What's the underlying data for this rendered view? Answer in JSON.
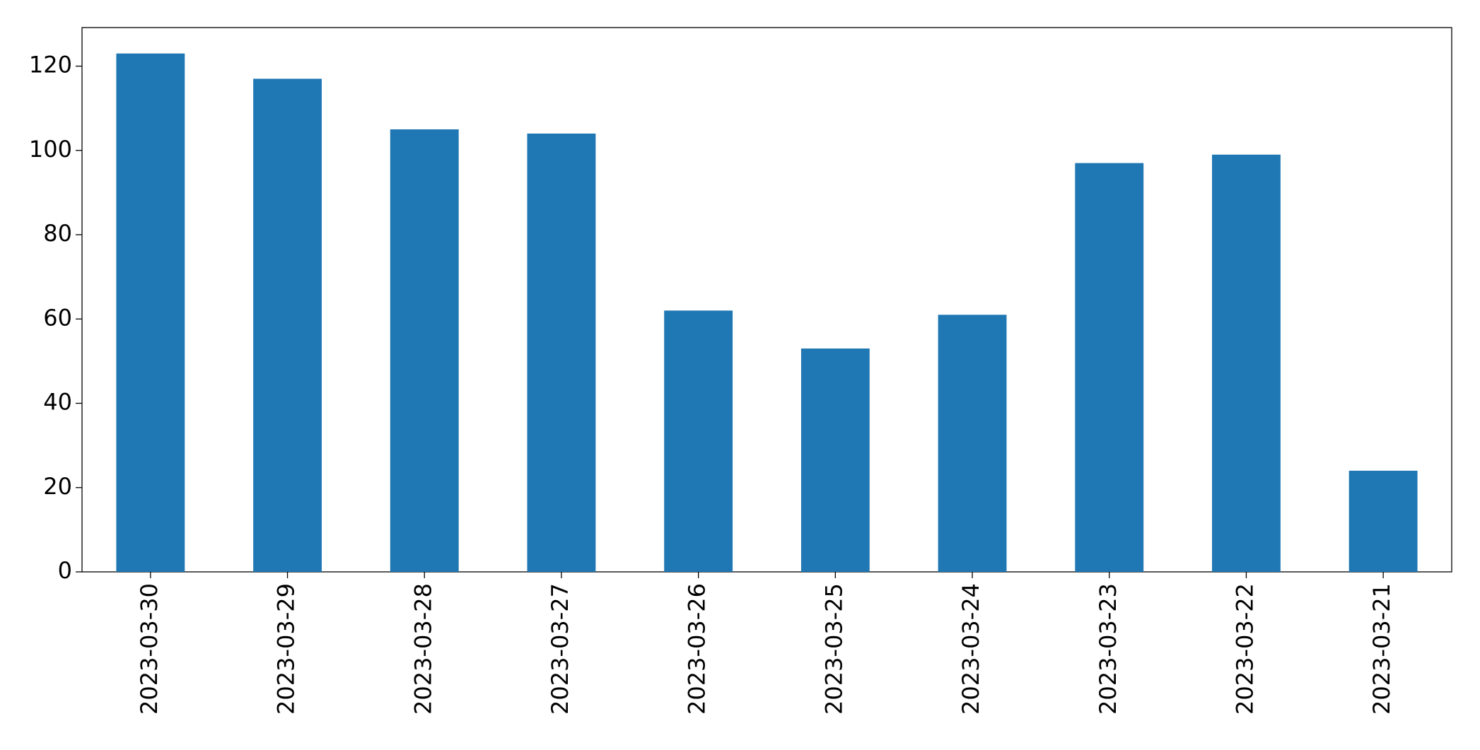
{
  "chart_data": {
    "type": "bar",
    "categories": [
      "2023-03-30",
      "2023-03-29",
      "2023-03-28",
      "2023-03-27",
      "2023-03-26",
      "2023-03-25",
      "2023-03-24",
      "2023-03-23",
      "2023-03-22",
      "2023-03-21"
    ],
    "values": [
      123,
      117,
      105,
      104,
      62,
      53,
      61,
      97,
      99,
      24
    ],
    "color": "#1f77b4",
    "ylim": [
      0,
      129.15
    ],
    "yticks": [
      0,
      20,
      40,
      60,
      80,
      100,
      120
    ],
    "grid": false
  }
}
